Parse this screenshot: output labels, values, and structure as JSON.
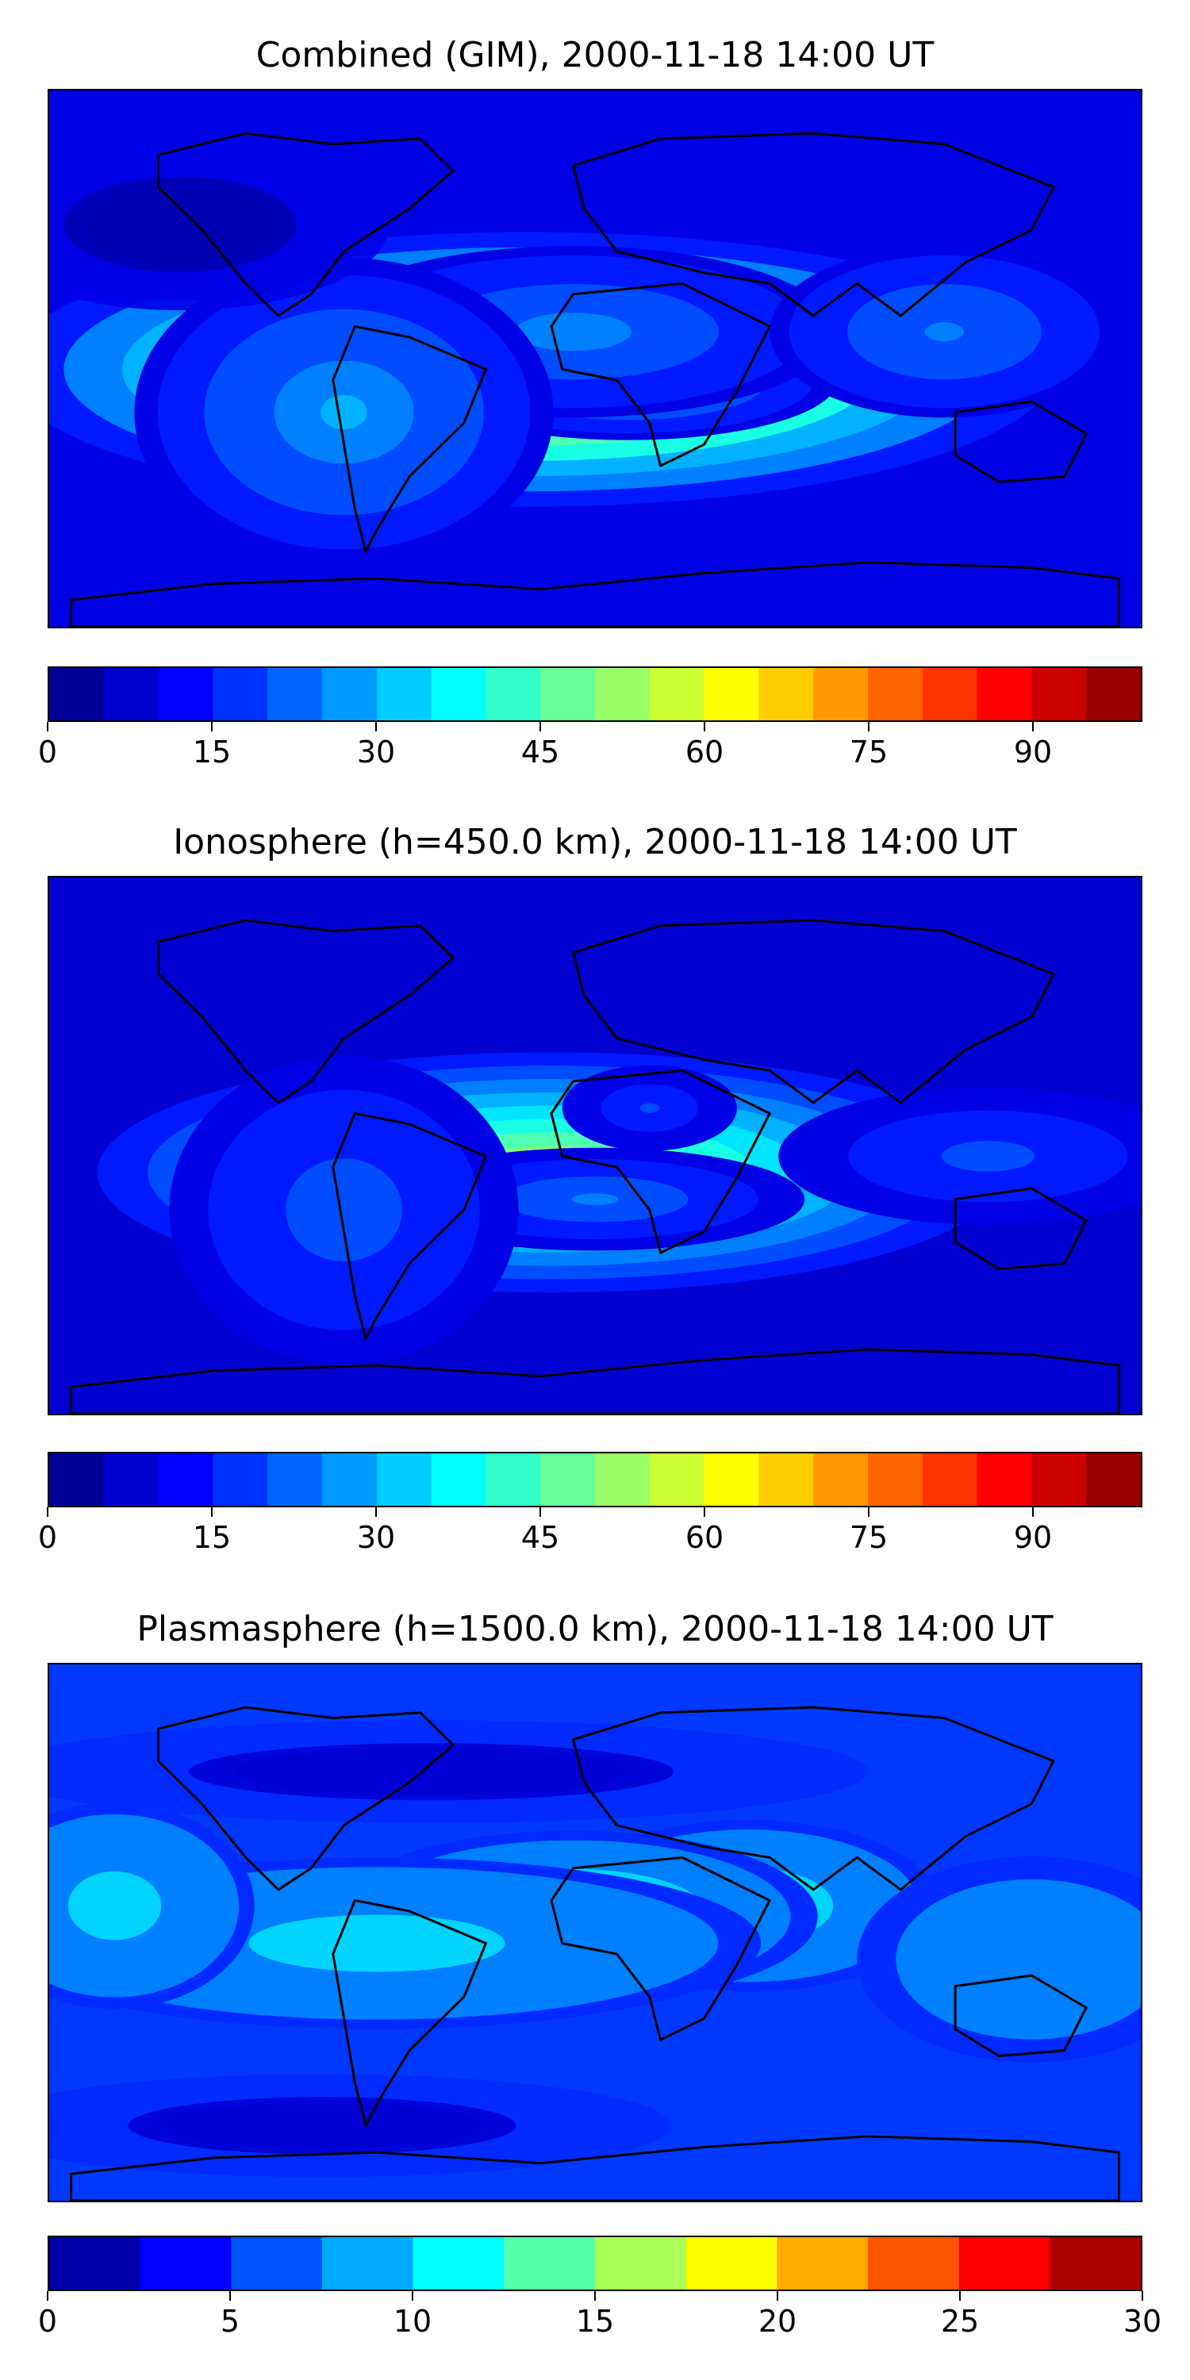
{
  "panels": [
    {
      "title": "Combined (GIM), 2000-11-18 14:00 UT",
      "vmin": 0,
      "vmax": 100,
      "levels": 20,
      "ticks": [
        "0",
        "15",
        "30",
        "45",
        "60",
        "75",
        "90"
      ],
      "tick_values": [
        0,
        15,
        30,
        45,
        60,
        75,
        90
      ]
    },
    {
      "title": "Ionosphere  (h=450.0 km), 2000-11-18 14:00 UT",
      "vmin": 0,
      "vmax": 100,
      "levels": 20,
      "ticks": [
        "0",
        "15",
        "30",
        "45",
        "60",
        "75",
        "90"
      ],
      "tick_values": [
        0,
        15,
        30,
        45,
        60,
        75,
        90
      ]
    },
    {
      "title": "Plasmasphere (h=1500.0 km), 2000-11-18 14:00 UT",
      "vmin": 0,
      "vmax": 30,
      "levels": 12,
      "ticks": [
        "0",
        "5",
        "10",
        "15",
        "20",
        "25",
        "30"
      ],
      "tick_values": [
        0,
        5,
        10,
        15,
        20,
        25,
        30
      ]
    }
  ],
  "colormap": "jet",
  "colors": {
    "jet": [
      "#00007f",
      "#0000ff",
      "#007fff",
      "#00ffff",
      "#7fff7f",
      "#ffff00",
      "#ff7f00",
      "#ff0000",
      "#7f0000"
    ],
    "coastline": "#000000"
  }
}
